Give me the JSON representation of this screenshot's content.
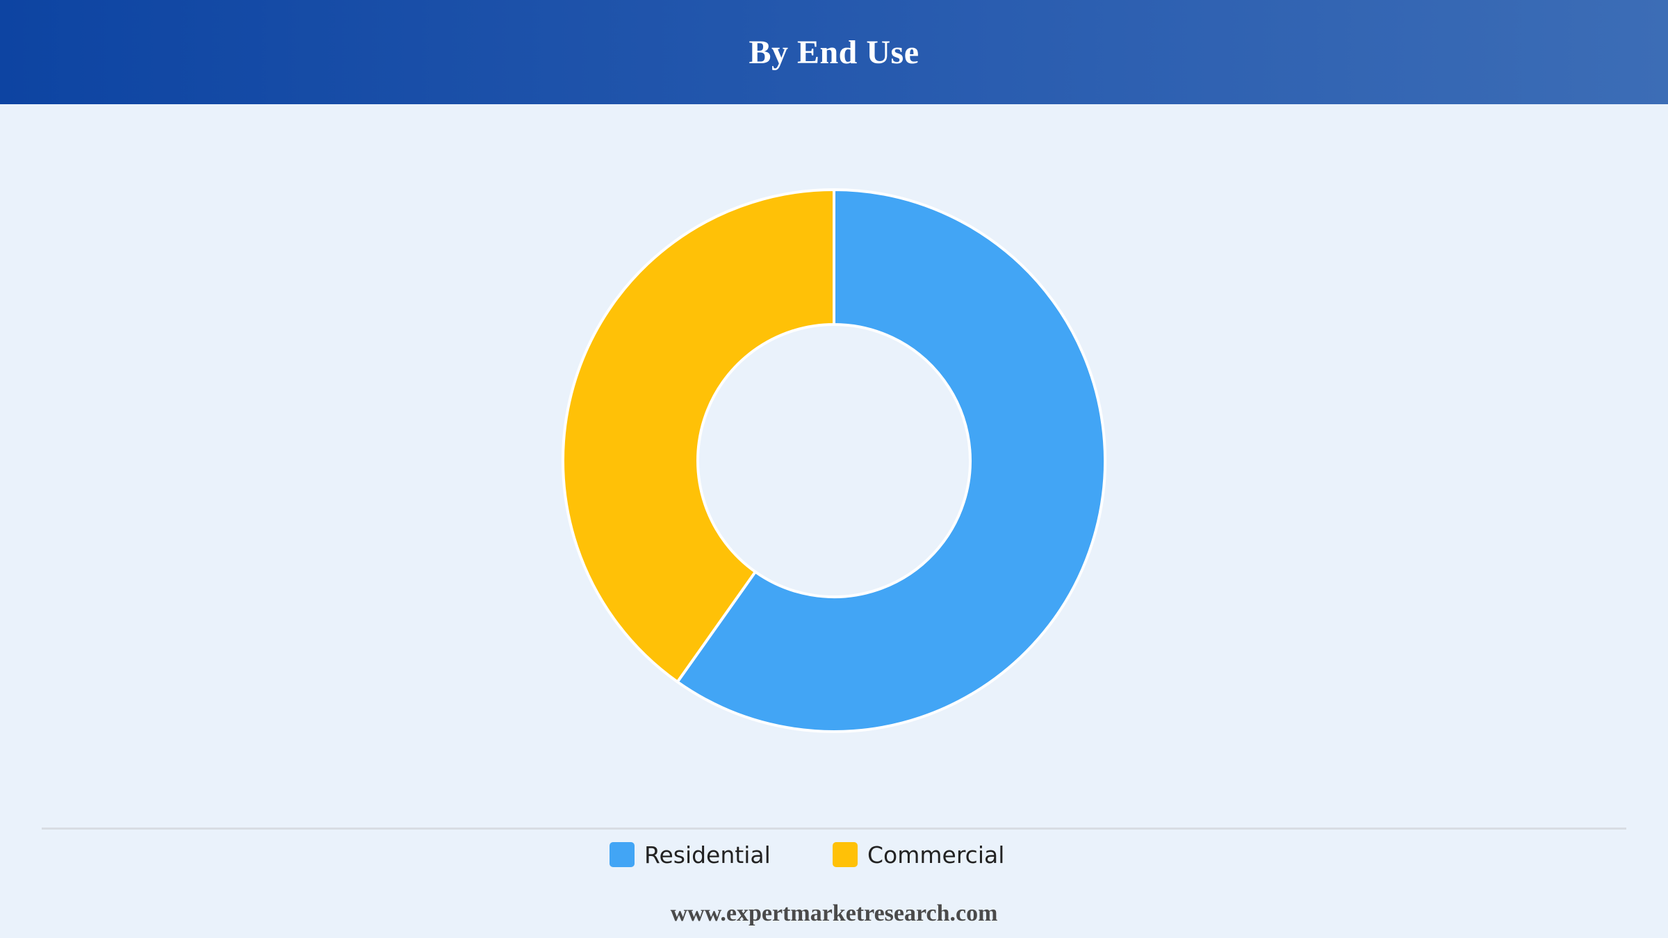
{
  "header": {
    "title": "By End Use"
  },
  "chart_data": {
    "type": "pie",
    "variant": "donut",
    "categories": [
      "Residential",
      "Commercial"
    ],
    "values": [
      59.8,
      40.2
    ],
    "value_unit": "%",
    "legend_position": "bottom",
    "colors": [
      "#42A5F5",
      "#FFC107"
    ]
  },
  "legend": {
    "items": [
      {
        "label": "Residential",
        "color": "#42A5F5"
      },
      {
        "label": "Commercial",
        "color": "#FFC107"
      }
    ]
  },
  "footer": {
    "website": "www.expertmarketresearch.com"
  }
}
